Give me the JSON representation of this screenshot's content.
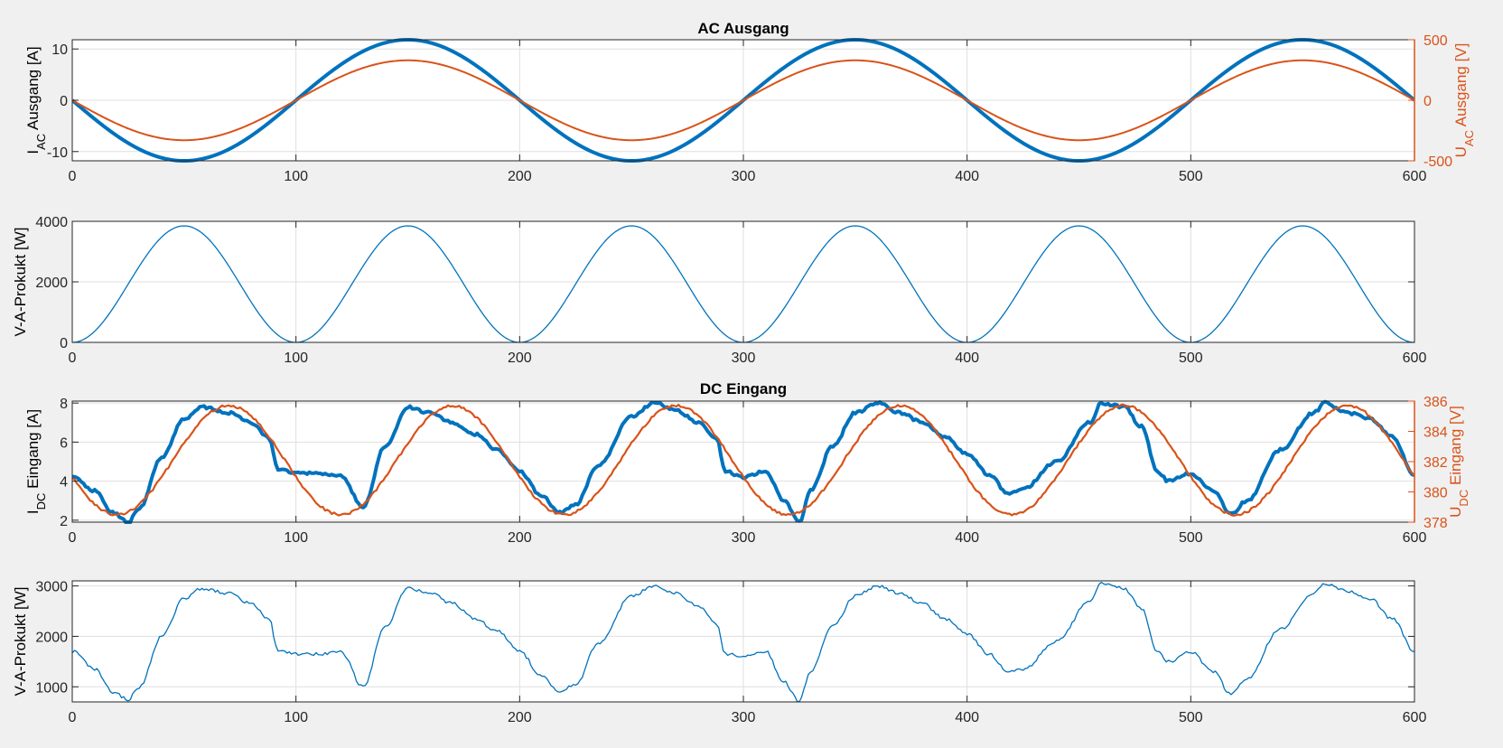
{
  "figure": {
    "background": "#f0f0f0",
    "colors": {
      "blue": "#0072bd",
      "orange": "#d95319",
      "axis": "#262626",
      "grid": "#dfdfdf"
    }
  },
  "chart_data": [
    {
      "id": "ac-current-voltage",
      "type": "line",
      "title": "AC Ausgang",
      "xlabel": "",
      "xlim": [
        0,
        600
      ],
      "xticks": [
        0,
        100,
        200,
        300,
        400,
        500,
        600
      ],
      "ylabel_left": {
        "base": "I",
        "sub": "AC",
        "rest": " Ausgang [A]"
      },
      "ylim_left": [
        -11.8,
        11.8
      ],
      "yticks_left": [
        -10,
        0,
        10
      ],
      "ylabel_right": {
        "base": "U",
        "sub": "AC",
        "rest": " Ausgang [V]"
      },
      "ylim_right": [
        -500,
        500
      ],
      "yticks_right": [
        -500,
        0,
        500
      ],
      "grid": true,
      "series": [
        {
          "axis": "left",
          "color": "#0072bd",
          "stroke": 4,
          "model": "sine",
          "amp": 11.8,
          "period": 200,
          "phase": 0,
          "samples": 601
        },
        {
          "axis": "right",
          "color": "#d95319",
          "stroke": 2,
          "model": "sine",
          "amp": 330,
          "period": 200,
          "phase": 0,
          "samples": 601
        }
      ]
    },
    {
      "id": "ac-power",
      "type": "line",
      "title": "",
      "xlabel": "",
      "xlim": [
        0,
        600
      ],
      "xticks": [
        0,
        100,
        200,
        300,
        400,
        500,
        600
      ],
      "ylabel_left": {
        "base": "V-A-Prokukt [W]",
        "sub": "",
        "rest": ""
      },
      "ylim_left": [
        0,
        4000
      ],
      "yticks_left": [
        0,
        2000,
        4000
      ],
      "grid": true,
      "series": [
        {
          "axis": "left",
          "color": "#0072bd",
          "stroke": 1.3,
          "model": "sine2",
          "amp": 3850,
          "period": 200,
          "phase": 0,
          "samples": 601
        }
      ]
    },
    {
      "id": "dc-current-voltage",
      "type": "line",
      "title": "DC Eingang",
      "xlabel": "",
      "xlim": [
        0,
        600
      ],
      "xticks": [
        0,
        100,
        200,
        300,
        400,
        500,
        600
      ],
      "ylabel_left": {
        "base": "I",
        "sub": "DC",
        "rest": " Eingang [A]"
      },
      "ylim_left": [
        1.9,
        8.1
      ],
      "yticks_left": [
        2,
        4,
        6,
        8
      ],
      "ylabel_right": {
        "base": "U",
        "sub": "DC",
        "rest": " Eingang [V]"
      },
      "ylim_right": [
        378,
        386
      ],
      "yticks_right": [
        378,
        380,
        382,
        384,
        386
      ],
      "grid": true,
      "series": [
        {
          "axis": "left",
          "color": "#0072bd",
          "stroke": 4,
          "model": "points",
          "jitter": 0.07,
          "x": [
            0,
            10,
            18,
            25,
            30,
            40,
            50,
            58,
            70,
            80,
            88,
            92,
            100,
            110,
            120,
            130,
            140,
            150,
            160,
            170,
            180,
            190,
            200,
            210,
            218,
            225,
            235,
            250,
            260,
            270,
            280,
            288,
            292,
            300,
            310,
            318,
            325,
            330,
            340,
            350,
            360,
            370,
            380,
            390,
            400,
            410,
            418,
            425,
            440,
            455,
            460,
            470,
            478,
            485,
            490,
            500,
            510,
            518,
            525,
            540,
            555,
            560,
            570,
            580,
            590,
            600
          ],
          "y": [
            4.3,
            3.5,
            2.4,
            1.9,
            2.6,
            5.2,
            7.2,
            7.8,
            7.5,
            7.0,
            6.2,
            4.6,
            4.4,
            4.4,
            4.3,
            2.7,
            5.8,
            7.8,
            7.5,
            7.0,
            6.4,
            5.6,
            4.5,
            3.2,
            2.4,
            2.8,
            4.8,
            7.3,
            8.0,
            7.6,
            7.0,
            6.2,
            4.5,
            4.2,
            4.5,
            3.0,
            1.9,
            3.5,
            5.8,
            7.5,
            8.0,
            7.5,
            7.0,
            6.3,
            5.4,
            4.3,
            3.4,
            3.6,
            5.0,
            7.0,
            8.0,
            7.8,
            6.8,
            4.5,
            4.0,
            4.4,
            3.5,
            2.3,
            3.0,
            5.6,
            7.5,
            8.0,
            7.5,
            7.2,
            6.3,
            4.3
          ]
        },
        {
          "axis": "right",
          "color": "#d95319",
          "stroke": 2.2,
          "model": "sine",
          "amp": 3.6,
          "period": 100,
          "phase": 5,
          "offset": 382.1,
          "noise": 0.08,
          "samples": 601
        }
      ]
    },
    {
      "id": "dc-power",
      "type": "line",
      "title": "",
      "xlabel": "",
      "xlim": [
        0,
        600
      ],
      "xticks": [
        0,
        100,
        200,
        300,
        400,
        500,
        600
      ],
      "ylabel_left": {
        "base": "V-A-Prokukt [W]",
        "sub": "",
        "rest": ""
      },
      "ylim_left": [
        700,
        3100
      ],
      "yticks_left": [
        1000,
        2000,
        3000
      ],
      "grid": true,
      "series": [
        {
          "axis": "left",
          "color": "#0072bd",
          "stroke": 1.3,
          "model": "points",
          "jitter": 30,
          "x": [
            0,
            10,
            18,
            25,
            30,
            40,
            50,
            58,
            70,
            80,
            88,
            92,
            100,
            110,
            120,
            130,
            140,
            150,
            160,
            170,
            180,
            190,
            200,
            210,
            218,
            225,
            235,
            250,
            260,
            270,
            280,
            288,
            292,
            300,
            310,
            318,
            325,
            330,
            340,
            350,
            360,
            370,
            380,
            390,
            400,
            410,
            418,
            425,
            440,
            455,
            460,
            470,
            478,
            485,
            490,
            500,
            510,
            518,
            525,
            540,
            555,
            560,
            570,
            580,
            590,
            600
          ],
          "y": [
            1700,
            1350,
            900,
            750,
            1000,
            2000,
            2750,
            2950,
            2850,
            2650,
            2350,
            1700,
            1650,
            1650,
            1700,
            1000,
            2200,
            2950,
            2850,
            2650,
            2350,
            2100,
            1700,
            1200,
            900,
            1050,
            1850,
            2800,
            3000,
            2850,
            2600,
            2250,
            1650,
            1600,
            1700,
            1100,
            720,
            1300,
            2200,
            2800,
            3000,
            2850,
            2650,
            2350,
            2050,
            1650,
            1300,
            1350,
            1900,
            2700,
            3050,
            2950,
            2550,
            1700,
            1500,
            1700,
            1300,
            850,
            1150,
            2150,
            2850,
            3050,
            2900,
            2750,
            2350,
            1700
          ]
        }
      ]
    }
  ]
}
